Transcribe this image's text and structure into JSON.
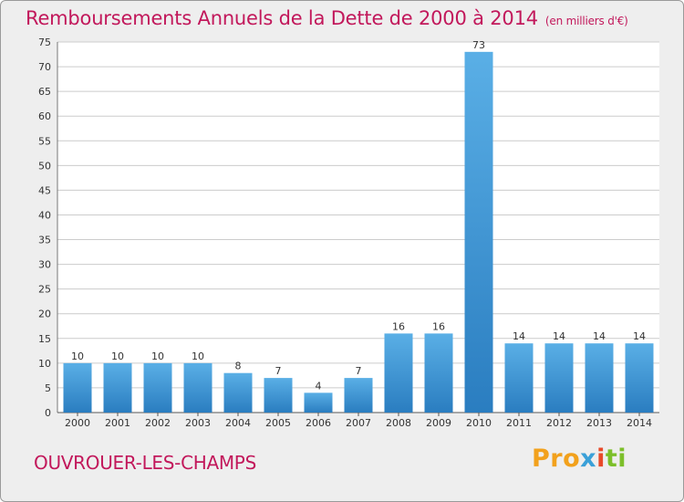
{
  "header": {
    "title": "Remboursements Annuels de la Dette de 2000 à 2014",
    "subtitle": "(en milliers d'€)"
  },
  "footer": {
    "commune": "OUVROUER-LES-CHAMPS",
    "brand": {
      "p1": "Pro",
      "p2": "x",
      "p3": "i",
      "p4": "ti"
    }
  },
  "colors": {
    "title": "#c2185b",
    "bar_light": "#5aafe6",
    "bar_dark": "#2a7dc0",
    "grid": "#cccccc",
    "plot_bg": "#ffffff",
    "frame_bg": "#eeeeee"
  },
  "chart_data": {
    "type": "bar",
    "title": "Remboursements Annuels de la Dette de 2000 à 2014",
    "subtitle": "(en milliers d'€)",
    "xlabel": "",
    "ylabel": "",
    "categories": [
      "2000",
      "2001",
      "2002",
      "2003",
      "2004",
      "2005",
      "2006",
      "2007",
      "2008",
      "2009",
      "2010",
      "2011",
      "2012",
      "2013",
      "2014"
    ],
    "values": [
      10,
      10,
      10,
      10,
      8,
      7,
      4,
      7,
      16,
      16,
      73,
      14,
      14,
      14,
      14
    ],
    "ylim": [
      0,
      75
    ],
    "yticks": [
      "0",
      "5",
      "10",
      "15",
      "20",
      "25",
      "30",
      "35",
      "40",
      "45",
      "50",
      "55",
      "60",
      "65",
      "70",
      "75"
    ],
    "grid": true,
    "data_labels": true
  }
}
